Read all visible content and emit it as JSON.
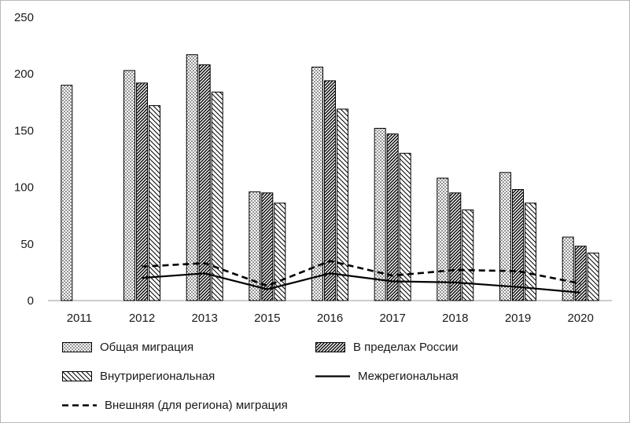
{
  "chart_data": {
    "type": "bar",
    "subtype": "grouped-bars-with-lines",
    "categories": [
      "2011",
      "2012",
      "2013",
      "2015",
      "2016",
      "2017",
      "2018",
      "2019",
      "2020"
    ],
    "bar_series": [
      {
        "name": "Общая миграция",
        "pattern": "dots",
        "values": [
          190,
          203,
          217,
          96,
          206,
          152,
          108,
          113,
          56
        ]
      },
      {
        "name": "В пределах России",
        "pattern": "hatch-dense",
        "values": [
          null,
          192,
          208,
          95,
          194,
          147,
          95,
          98,
          48
        ]
      },
      {
        "name": "Внутрирегиональная",
        "pattern": "hatch-light",
        "values": [
          null,
          172,
          184,
          86,
          169,
          130,
          80,
          86,
          42
        ]
      }
    ],
    "line_series": [
      {
        "name": "Межрегиональная",
        "style": "solid",
        "values": [
          null,
          20,
          24,
          10,
          24,
          17,
          16,
          12,
          7
        ]
      },
      {
        "name": "Внешняя (для региона) миграция",
        "style": "dashed",
        "values": [
          null,
          30,
          33,
          13,
          35,
          22,
          27,
          26,
          15
        ]
      }
    ],
    "title": "",
    "xlabel": "",
    "ylabel": "",
    "ylim": [
      0,
      250
    ],
    "y_ticks": [
      0,
      50,
      100,
      150,
      200,
      250
    ],
    "grid": false,
    "legend_position": "bottom"
  },
  "colors": {
    "bar_fill_base": "#ffffff",
    "bar_stroke": "#000000",
    "line_color": "#000000",
    "axis_line": "#9a9a9a",
    "text": "#1a1a1a"
  }
}
